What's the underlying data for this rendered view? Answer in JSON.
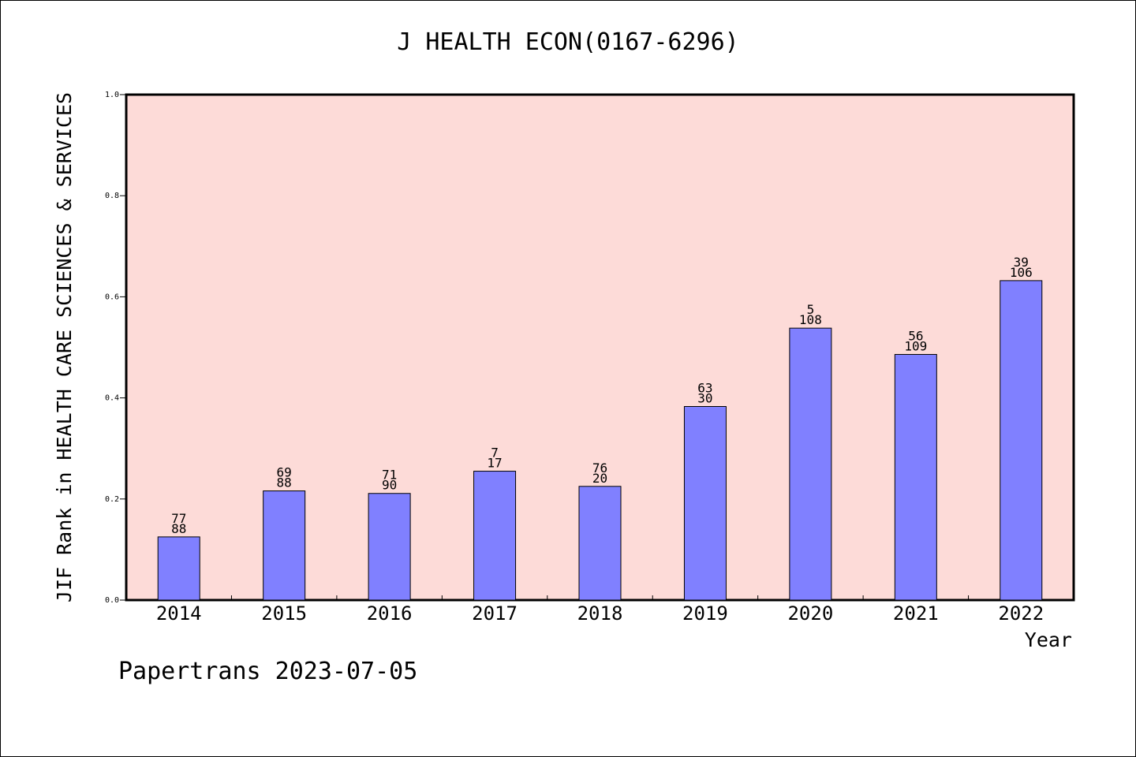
{
  "chart_data": {
    "type": "bar",
    "title": "J HEALTH ECON(0167-6296)",
    "xlabel": "Year",
    "ylabel": "JIF Rank in HEALTH CARE SCIENCES & SERVICES",
    "categories": [
      "2014",
      "2015",
      "2016",
      "2017",
      "2018",
      "2019",
      "2020",
      "2021",
      "2022"
    ],
    "values": [
      0.125,
      0.216,
      0.211,
      0.255,
      0.225,
      0.383,
      0.538,
      0.486,
      0.632
    ],
    "label_top": [
      "77",
      "69",
      "71",
      "7",
      "76",
      "63",
      "5",
      "56",
      "39"
    ],
    "label_bottom": [
      "88",
      "88",
      "90",
      "17",
      "20",
      "30",
      "108",
      "109",
      "106"
    ],
    "ylim": [
      0,
      1.0
    ],
    "yticks": [
      "0.0",
      "0.2",
      "0.4",
      "0.6",
      "0.8",
      "1.0"
    ],
    "colors": {
      "plot_background": "#fddbd8",
      "bar_fill": "#8080ff",
      "bar_stroke": "#000000"
    },
    "grid": false
  },
  "footer": "Papertrans 2023-07-05"
}
